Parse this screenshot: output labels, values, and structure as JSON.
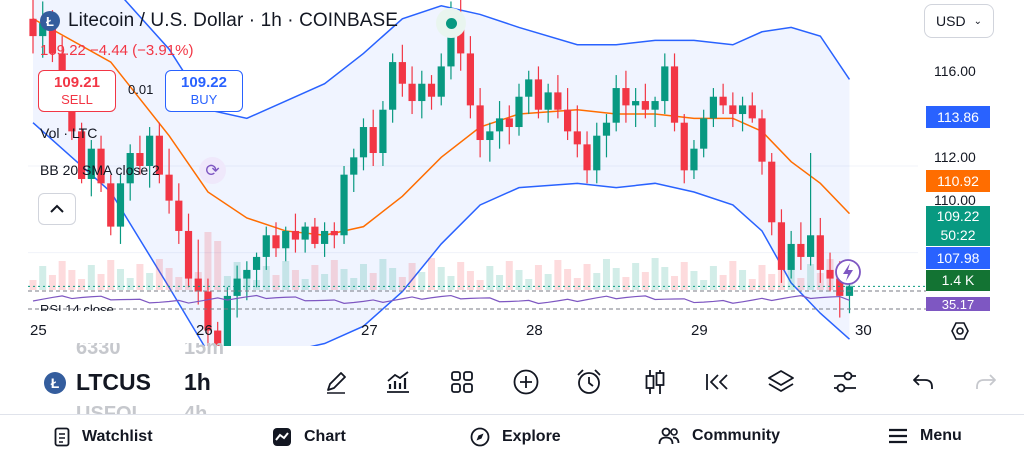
{
  "header": {
    "title": "Litecoin / U.S. Dollar · 1h · COINBASE",
    "coin_icon": "litecoin-icon",
    "currency_select": "USD",
    "change_line": "109.22 −4.44 (−3.91%)"
  },
  "trade": {
    "sell_price": "109.21",
    "sell_label": "SELL",
    "spread": "0.01",
    "buy_price": "109.22",
    "buy_label": "BUY"
  },
  "indicators": {
    "volume_label": "Vol · LTC",
    "bb_label": "BB 20 SMA close 2",
    "rsi_label": "RSI 14 close"
  },
  "price_axis": {
    "labels": [
      "116.00",
      "112.00",
      "110.00"
    ],
    "tags": {
      "bb_upper": "113.86",
      "bb_basis": "110.92",
      "last_price": "109.22",
      "countdown": "50:22",
      "bb_lower": "107.98",
      "volume": "1.4 K",
      "rsi": "35.17"
    }
  },
  "time_axis": [
    "25",
    "26",
    "27",
    "28",
    "29",
    "30"
  ],
  "colors": {
    "up": "#089981",
    "down": "#f23645",
    "bb_band": "#2962ff",
    "bb_basis": "#ff6d00",
    "rsi": "#7e57c2",
    "live": "#089981",
    "volume_tag": "#137333"
  },
  "toolbar": {
    "symbol": "LTCUS",
    "interval": "1h",
    "ghost_above_symbol": "6330",
    "ghost_above_interval": "15m",
    "ghost_below_symbol": "USFOI",
    "ghost_below_interval": "4h",
    "tools": [
      "pencil-icon",
      "indicators-chart-icon",
      "grid-layout-icon",
      "plus-circle-icon",
      "alarm-clock-icon",
      "candlestick-icon",
      "replay-icon",
      "layers-icon",
      "sliders-icon",
      "undo-icon",
      "redo-icon"
    ]
  },
  "bottom_nav": {
    "watchlist": "Watchlist",
    "chart": "Chart",
    "explore": "Explore",
    "community": "Community",
    "menu": "Menu"
  },
  "chart_data": {
    "type": "candlestick",
    "ylim": [
      106.9,
      116.5
    ],
    "x_ticks": [
      "25",
      "26",
      "27",
      "28",
      "29",
      "30"
    ],
    "y_ticks": [
      110,
      112,
      116
    ],
    "candles": [
      [
        115.4,
        116.0,
        114.6,
        115.0
      ],
      [
        115.0,
        115.8,
        114.5,
        115.3
      ],
      [
        115.3,
        115.6,
        114.4,
        114.6
      ],
      [
        114.6,
        115.0,
        113.6,
        113.8
      ],
      [
        113.8,
        114.1,
        112.6,
        112.8
      ],
      [
        112.8,
        113.0,
        111.6,
        111.7
      ],
      [
        111.7,
        112.6,
        111.3,
        112.4
      ],
      [
        112.4,
        112.7,
        111.4,
        111.6
      ],
      [
        111.6,
        111.8,
        110.4,
        110.6
      ],
      [
        110.6,
        111.8,
        110.2,
        111.6
      ],
      [
        111.6,
        112.5,
        111.2,
        112.3
      ],
      [
        112.3,
        112.7,
        111.8,
        112.0
      ],
      [
        112.0,
        112.9,
        111.5,
        112.7
      ],
      [
        112.7,
        113.0,
        111.6,
        111.8
      ],
      [
        111.8,
        112.4,
        110.9,
        111.2
      ],
      [
        111.2,
        111.6,
        110.2,
        110.5
      ],
      [
        110.5,
        110.9,
        109.2,
        109.4
      ],
      [
        109.4,
        110.3,
        108.8,
        109.1
      ],
      [
        109.1,
        109.4,
        107.8,
        108.2
      ],
      [
        108.2,
        108.4,
        107.1,
        107.5
      ],
      [
        107.5,
        109.2,
        107.2,
        109.0
      ],
      [
        109.0,
        109.7,
        108.5,
        109.4
      ],
      [
        109.4,
        109.8,
        108.9,
        109.6
      ],
      [
        109.6,
        110.0,
        109.2,
        109.9
      ],
      [
        109.9,
        110.6,
        109.6,
        110.4
      ],
      [
        110.4,
        110.7,
        109.9,
        110.1
      ],
      [
        110.1,
        110.6,
        109.8,
        110.5
      ],
      [
        110.5,
        110.9,
        110.0,
        110.3
      ],
      [
        110.3,
        110.7,
        110.0,
        110.6
      ],
      [
        110.6,
        110.8,
        110.1,
        110.2
      ],
      [
        110.2,
        110.7,
        109.9,
        110.5
      ],
      [
        110.5,
        110.7,
        110.1,
        110.4
      ],
      [
        110.4,
        112.0,
        110.2,
        111.8
      ],
      [
        111.8,
        112.4,
        111.4,
        112.2
      ],
      [
        112.2,
        113.1,
        111.9,
        112.9
      ],
      [
        112.9,
        113.3,
        112.0,
        112.3
      ],
      [
        112.3,
        113.5,
        112.0,
        113.3
      ],
      [
        113.3,
        114.6,
        113.0,
        114.4
      ],
      [
        114.4,
        114.8,
        113.6,
        113.9
      ],
      [
        113.9,
        114.3,
        113.2,
        113.5
      ],
      [
        113.5,
        114.2,
        113.1,
        113.9
      ],
      [
        113.9,
        114.1,
        113.3,
        113.6
      ],
      [
        113.6,
        114.6,
        113.4,
        114.3
      ],
      [
        114.3,
        115.8,
        114.0,
        115.3
      ],
      [
        115.3,
        116.2,
        114.2,
        114.6
      ],
      [
        114.6,
        115.0,
        113.1,
        113.4
      ],
      [
        113.4,
        113.8,
        112.2,
        112.6
      ],
      [
        112.6,
        113.0,
        112.1,
        112.8
      ],
      [
        112.8,
        113.5,
        112.4,
        113.1
      ],
      [
        113.1,
        113.4,
        112.5,
        112.9
      ],
      [
        112.9,
        113.9,
        112.7,
        113.6
      ],
      [
        113.6,
        114.2,
        113.2,
        114.0
      ],
      [
        114.0,
        114.3,
        113.1,
        113.3
      ],
      [
        113.3,
        113.9,
        113.0,
        113.7
      ],
      [
        113.7,
        114.1,
        113.1,
        113.3
      ],
      [
        113.3,
        113.8,
        112.6,
        112.8
      ],
      [
        112.8,
        113.4,
        112.2,
        112.5
      ],
      [
        112.5,
        112.8,
        111.6,
        111.9
      ],
      [
        111.9,
        113.0,
        111.6,
        112.7
      ],
      [
        112.7,
        113.2,
        112.2,
        113.0
      ],
      [
        113.0,
        114.1,
        112.8,
        113.8
      ],
      [
        113.8,
        114.2,
        113.0,
        113.4
      ],
      [
        113.4,
        113.8,
        112.9,
        113.5
      ],
      [
        113.5,
        113.9,
        113.1,
        113.3
      ],
      [
        113.3,
        113.6,
        112.9,
        113.5
      ],
      [
        113.5,
        114.6,
        113.2,
        114.3
      ],
      [
        114.3,
        114.6,
        112.8,
        113.0
      ],
      [
        113.0,
        113.2,
        111.6,
        111.9
      ],
      [
        111.9,
        112.6,
        111.7,
        112.4
      ],
      [
        112.4,
        113.3,
        112.2,
        113.1
      ],
      [
        113.1,
        113.8,
        112.9,
        113.6
      ],
      [
        113.6,
        113.9,
        113.2,
        113.4
      ],
      [
        113.4,
        113.7,
        112.9,
        113.2
      ],
      [
        113.2,
        113.6,
        112.8,
        113.4
      ],
      [
        113.4,
        113.7,
        113.0,
        113.1
      ],
      [
        113.1,
        113.3,
        111.8,
        112.1
      ],
      [
        112.1,
        112.3,
        110.4,
        110.7
      ],
      [
        110.7,
        111.0,
        109.3,
        109.6
      ],
      [
        109.6,
        110.5,
        109.4,
        110.2
      ],
      [
        110.2,
        110.7,
        109.6,
        109.9
      ],
      [
        109.9,
        112.3,
        109.7,
        110.4
      ],
      [
        110.4,
        110.8,
        109.3,
        109.6
      ],
      [
        109.6,
        110.0,
        109.1,
        109.4
      ],
      [
        109.4,
        109.8,
        108.5,
        109.0
      ],
      [
        109.0,
        109.4,
        108.6,
        109.22
      ]
    ],
    "bb_upper": [
      [
        0,
        117.4
      ],
      [
        8,
        116.2
      ],
      [
        14,
        114.7
      ],
      [
        18,
        113.3
      ],
      [
        22,
        113.1
      ],
      [
        26,
        113.5
      ],
      [
        30,
        113.9
      ],
      [
        34,
        114.6
      ],
      [
        38,
        115.4
      ],
      [
        42,
        115.7
      ],
      [
        46,
        115.5
      ],
      [
        50,
        115.2
      ],
      [
        56,
        114.8
      ],
      [
        60,
        114.8
      ],
      [
        64,
        114.9
      ],
      [
        68,
        114.9
      ],
      [
        72,
        114.8
      ],
      [
        75,
        115.1
      ],
      [
        78,
        115.2
      ],
      [
        81,
        115.0
      ],
      [
        84,
        114.0
      ]
    ],
    "bb_basis": [
      [
        0,
        115.4
      ],
      [
        8,
        114.4
      ],
      [
        14,
        112.7
      ],
      [
        18,
        111.4
      ],
      [
        22,
        110.8
      ],
      [
        26,
        110.5
      ],
      [
        30,
        110.4
      ],
      [
        34,
        110.6
      ],
      [
        38,
        111.3
      ],
      [
        42,
        112.2
      ],
      [
        46,
        112.9
      ],
      [
        50,
        113.2
      ],
      [
        56,
        113.3
      ],
      [
        60,
        113.2
      ],
      [
        64,
        113.2
      ],
      [
        68,
        113.1
      ],
      [
        72,
        113.1
      ],
      [
        75,
        112.8
      ],
      [
        78,
        112.1
      ],
      [
        81,
        111.6
      ],
      [
        84,
        110.9
      ]
    ],
    "bb_lower": [
      [
        0,
        113.0
      ],
      [
        8,
        111.4
      ],
      [
        14,
        109.2
      ],
      [
        18,
        107.7
      ],
      [
        19,
        107.1
      ],
      [
        22,
        107.4
      ],
      [
        26,
        107.7
      ],
      [
        30,
        107.9
      ],
      [
        34,
        108.3
      ],
      [
        38,
        109.1
      ],
      [
        42,
        110.2
      ],
      [
        46,
        111.1
      ],
      [
        50,
        111.5
      ],
      [
        56,
        111.6
      ],
      [
        60,
        111.5
      ],
      [
        64,
        111.6
      ],
      [
        68,
        111.4
      ],
      [
        72,
        111.1
      ],
      [
        75,
        110.5
      ],
      [
        78,
        109.3
      ],
      [
        81,
        108.6
      ],
      [
        84,
        108.0
      ]
    ]
  }
}
